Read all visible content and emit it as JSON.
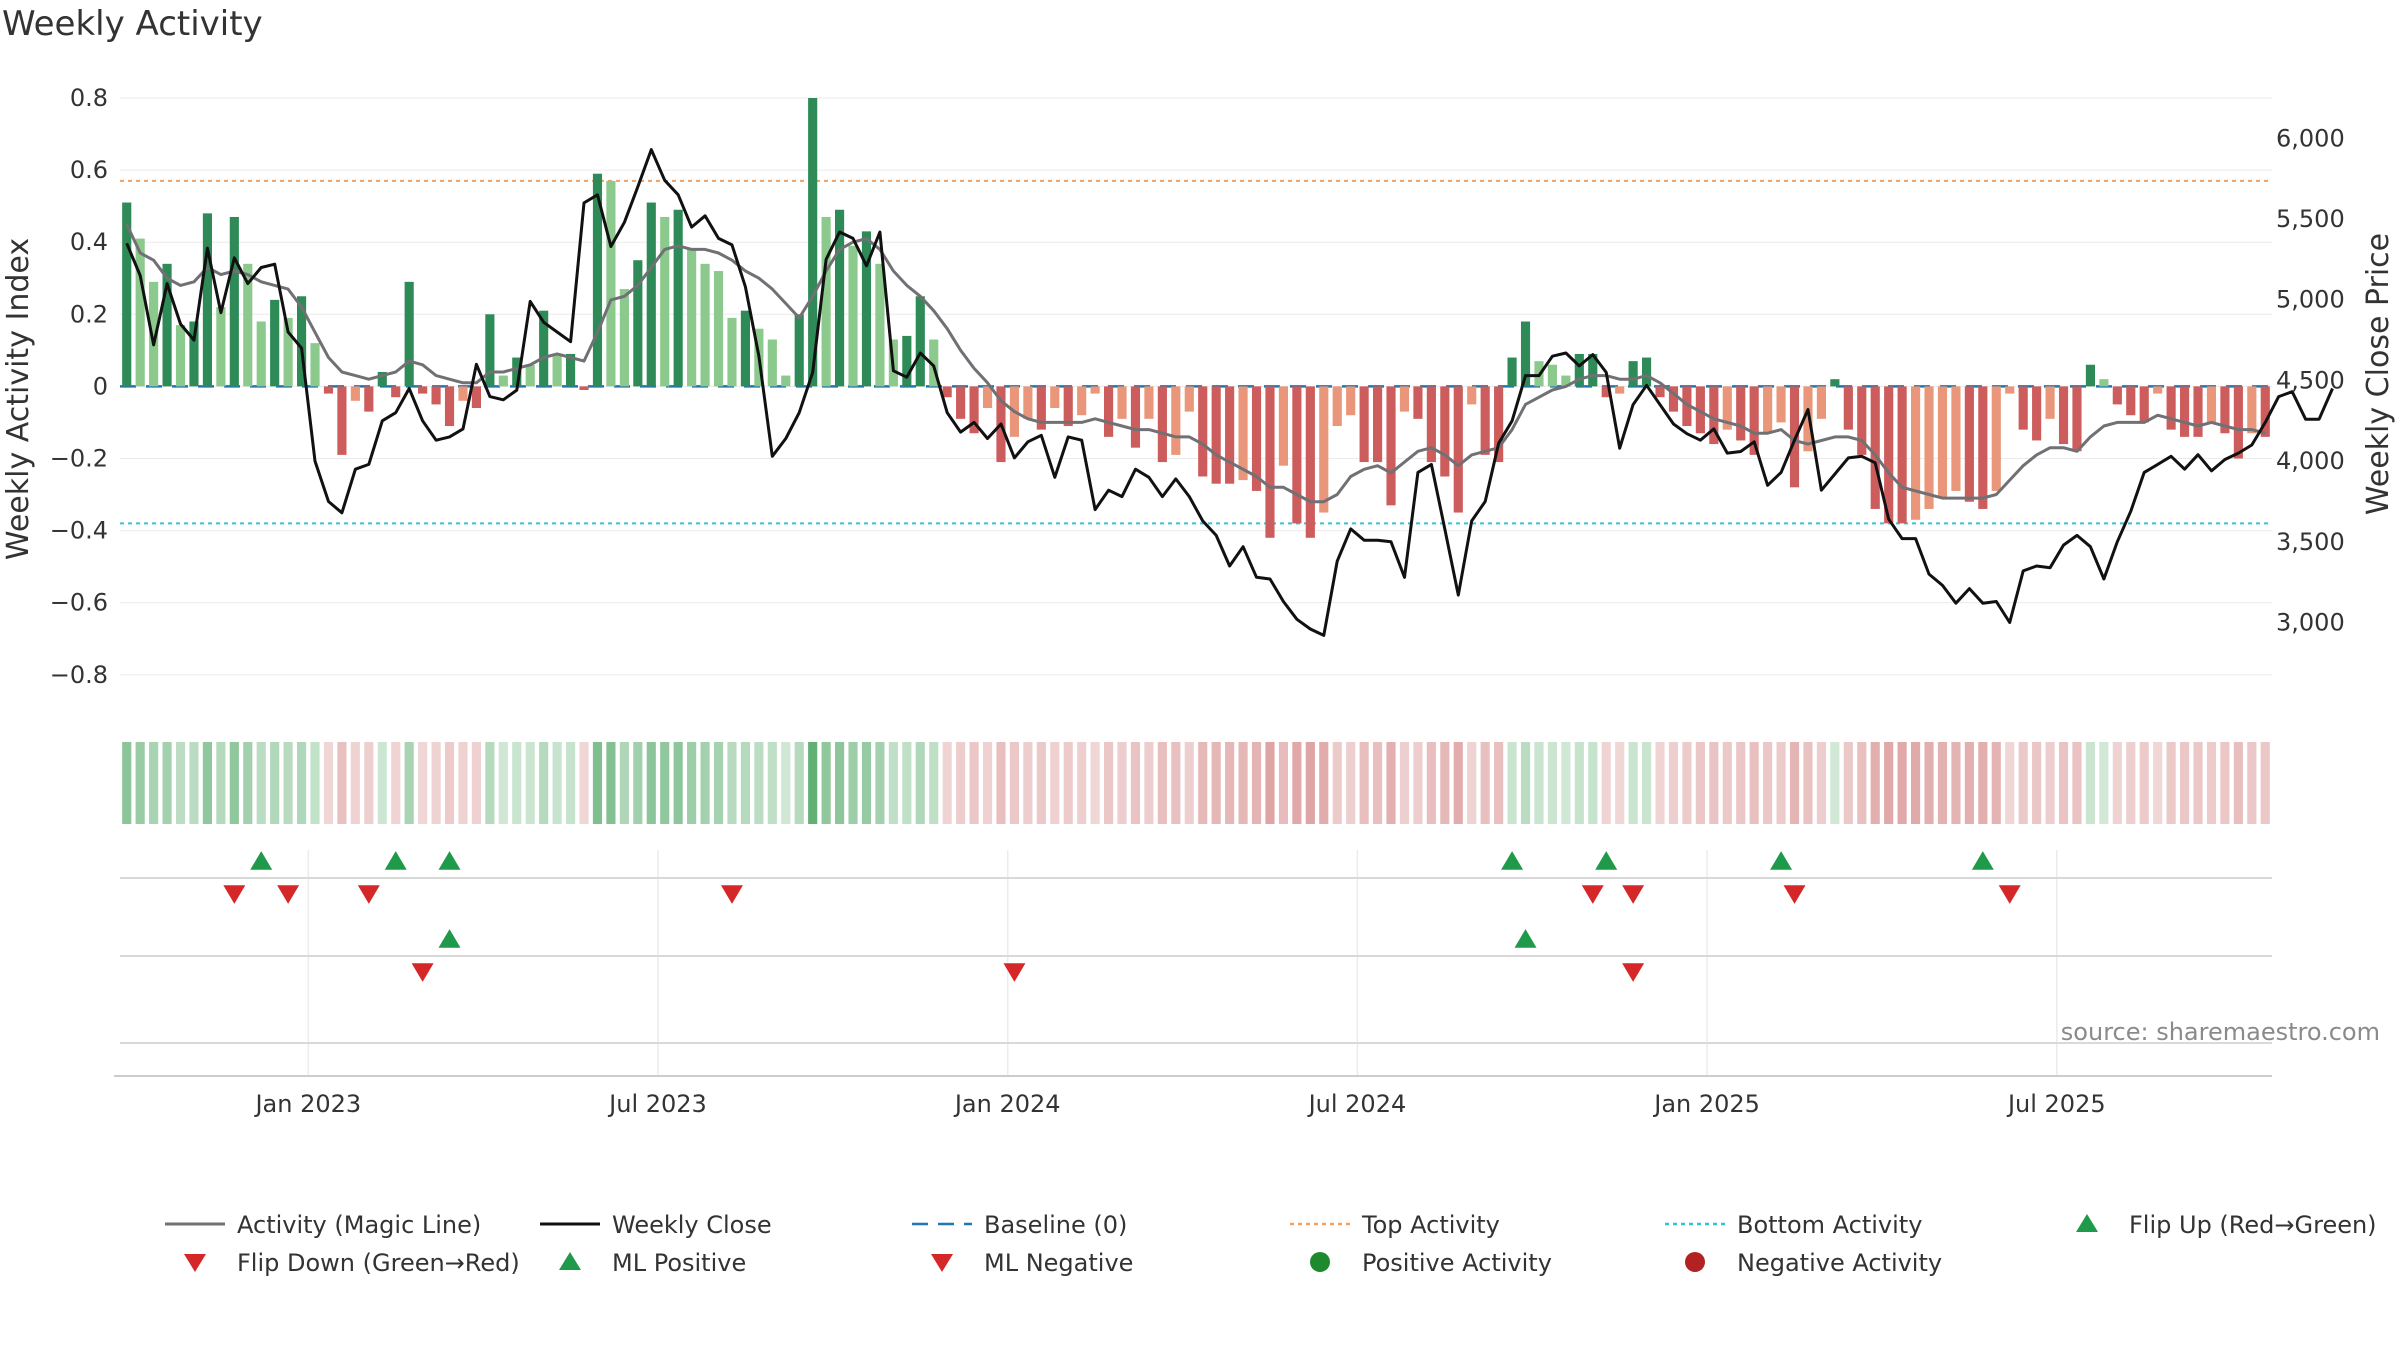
{
  "chart_data": {
    "type": "bar",
    "title": "Weekly Activity",
    "ylabel": "Weekly Activity Index",
    "y2label": "Weekly Close Price",
    "ylim": [
      -0.87,
      0.8
    ],
    "y2lim": [
      2520,
      6250
    ],
    "yticks": [
      0.8,
      0.6,
      0.4,
      0.2,
      0,
      -0.2,
      -0.4,
      -0.6,
      -0.8
    ],
    "ytick_labels": [
      "0.8",
      "0.6",
      "0.4",
      "0.2",
      "0",
      "−0.2",
      "−0.4",
      "−0.6",
      "−0.8"
    ],
    "y2ticks": [
      6000,
      5500,
      5000,
      4500,
      4000,
      3500,
      3000
    ],
    "y2tick_labels": [
      "6,000",
      "5,500",
      "5,000",
      "4,500",
      "4,000",
      "3,500",
      "3,000"
    ],
    "x_start": "2022-09-26",
    "x_end": "2025-09-01",
    "xticks": [
      {
        "label": "Jan 2023",
        "week": 14
      },
      {
        "label": "Jul 2023",
        "week": 40
      },
      {
        "label": "Jan 2024",
        "week": 66
      },
      {
        "label": "Jul 2024",
        "week": 92
      },
      {
        "label": "Jan 2025",
        "week": 118
      },
      {
        "label": "Jul 2025",
        "week": 144
      }
    ],
    "top_activity": 0.57,
    "bottom_activity": -0.38,
    "baseline": 0,
    "activity": [
      0.51,
      0.41,
      0.29,
      0.34,
      0.17,
      0.18,
      0.48,
      0.22,
      0.47,
      0.34,
      0.18,
      0.24,
      0.19,
      0.25,
      0.12,
      -0.02,
      -0.19,
      -0.04,
      -0.07,
      0.04,
      -0.03,
      0.29,
      -0.02,
      -0.05,
      -0.11,
      -0.04,
      -0.06,
      0.2,
      0.03,
      0.08,
      0.06,
      0.21,
      0.09,
      0.09,
      -0.01,
      0.59,
      0.57,
      0.27,
      0.35,
      0.51,
      0.47,
      0.49,
      0.38,
      0.34,
      0.32,
      0.19,
      0.21,
      0.16,
      0.13,
      0.03,
      0.2,
      0.8,
      0.47,
      0.49,
      0.39,
      0.43,
      0.34,
      0.13,
      0.14,
      0.25,
      0.13,
      -0.03,
      -0.09,
      -0.13,
      -0.06,
      -0.21,
      -0.14,
      -0.09,
      -0.12,
      -0.06,
      -0.11,
      -0.08,
      -0.02,
      -0.14,
      -0.09,
      -0.17,
      -0.09,
      -0.21,
      -0.19,
      -0.07,
      -0.25,
      -0.27,
      -0.27,
      -0.26,
      -0.29,
      -0.42,
      -0.22,
      -0.38,
      -0.42,
      -0.35,
      -0.11,
      -0.08,
      -0.21,
      -0.21,
      -0.33,
      -0.07,
      -0.09,
      -0.21,
      -0.25,
      -0.35,
      -0.05,
      -0.19,
      -0.21,
      0.08,
      0.18,
      0.07,
      0.06,
      0.03,
      0.09,
      0.09,
      -0.03,
      -0.02,
      0.07,
      0.08,
      -0.03,
      -0.07,
      -0.11,
      -0.13,
      -0.16,
      -0.12,
      -0.15,
      -0.19,
      -0.13,
      -0.1,
      -0.28,
      -0.18,
      -0.09,
      0.02,
      -0.12,
      -0.19,
      -0.34,
      -0.38,
      -0.38,
      -0.37,
      -0.34,
      -0.31,
      -0.29,
      -0.32,
      -0.34,
      -0.29,
      -0.02,
      -0.12,
      -0.15,
      -0.09,
      -0.16,
      -0.18,
      0.06,
      0.02,
      -0.05,
      -0.08,
      -0.1,
      -0.02,
      -0.12,
      -0.14,
      -0.14,
      -0.1,
      -0.13,
      -0.2,
      -0.13,
      -0.14
    ],
    "magic_line": [
      0.45,
      0.37,
      0.35,
      0.3,
      0.28,
      0.29,
      0.33,
      0.31,
      0.32,
      0.31,
      0.29,
      0.28,
      0.27,
      0.22,
      0.15,
      0.08,
      0.04,
      0.03,
      0.02,
      0.03,
      0.04,
      0.07,
      0.06,
      0.03,
      0.02,
      0.01,
      0.01,
      0.04,
      0.04,
      0.05,
      0.06,
      0.08,
      0.09,
      0.08,
      0.07,
      0.15,
      0.24,
      0.25,
      0.28,
      0.33,
      0.38,
      0.39,
      0.38,
      0.38,
      0.37,
      0.35,
      0.32,
      0.3,
      0.27,
      0.23,
      0.19,
      0.25,
      0.32,
      0.38,
      0.4,
      0.41,
      0.38,
      0.32,
      0.28,
      0.25,
      0.21,
      0.16,
      0.1,
      0.05,
      0.01,
      -0.04,
      -0.07,
      -0.09,
      -0.1,
      -0.1,
      -0.1,
      -0.1,
      -0.09,
      -0.1,
      -0.11,
      -0.12,
      -0.12,
      -0.13,
      -0.14,
      -0.14,
      -0.16,
      -0.19,
      -0.21,
      -0.23,
      -0.25,
      -0.28,
      -0.28,
      -0.3,
      -0.32,
      -0.32,
      -0.3,
      -0.25,
      -0.23,
      -0.22,
      -0.24,
      -0.21,
      -0.18,
      -0.17,
      -0.19,
      -0.22,
      -0.19,
      -0.18,
      -0.17,
      -0.12,
      -0.05,
      -0.03,
      -0.01,
      0.0,
      0.02,
      0.03,
      0.03,
      0.02,
      0.02,
      0.03,
      0.01,
      -0.02,
      -0.05,
      -0.07,
      -0.09,
      -0.1,
      -0.11,
      -0.13,
      -0.13,
      -0.12,
      -0.15,
      -0.16,
      -0.15,
      -0.14,
      -0.14,
      -0.15,
      -0.19,
      -0.24,
      -0.28,
      -0.29,
      -0.3,
      -0.31,
      -0.31,
      -0.31,
      -0.31,
      -0.3,
      -0.26,
      -0.22,
      -0.19,
      -0.17,
      -0.17,
      -0.18,
      -0.14,
      -0.11,
      -0.1,
      -0.1,
      -0.1,
      -0.08,
      -0.09,
      -0.1,
      -0.11,
      -0.1,
      -0.11,
      -0.12,
      -0.12,
      -0.13
    ],
    "weekly_close": [
      5350,
      5150,
      4720,
      5100,
      4850,
      4750,
      5320,
      4920,
      5260,
      5100,
      5200,
      5220,
      4800,
      4700,
      4000,
      3750,
      3680,
      3950,
      3980,
      4250,
      4300,
      4450,
      4250,
      4130,
      4150,
      4200,
      4600,
      4400,
      4380,
      4440,
      4990,
      4860,
      4800,
      4740,
      5600,
      5650,
      5330,
      5480,
      5700,
      5930,
      5740,
      5650,
      5450,
      5520,
      5380,
      5340,
      5080,
      4650,
      4030,
      4140,
      4300,
      4550,
      5250,
      5420,
      5380,
      5210,
      5420,
      4560,
      4520,
      4670,
      4590,
      4300,
      4180,
      4240,
      4140,
      4230,
      4020,
      4120,
      4160,
      3900,
      4150,
      4130,
      3700,
      3820,
      3780,
      3950,
      3900,
      3780,
      3890,
      3780,
      3630,
      3540,
      3350,
      3470,
      3280,
      3270,
      3130,
      3020,
      2960,
      2920,
      3380,
      3580,
      3510,
      3510,
      3500,
      3280,
      3930,
      3980,
      3580,
      3170,
      3630,
      3750,
      4110,
      4250,
      4530,
      4530,
      4650,
      4670,
      4590,
      4660,
      4550,
      4080,
      4350,
      4470,
      4350,
      4230,
      4170,
      4130,
      4200,
      4050,
      4060,
      4120,
      3850,
      3930,
      4130,
      4320,
      3820,
      3920,
      4020,
      4030,
      3990,
      3640,
      3520,
      3520,
      3300,
      3230,
      3120,
      3210,
      3120,
      3130,
      3000,
      3320,
      3350,
      3340,
      3480,
      3540,
      3470,
      3270,
      3500,
      3690,
      3930,
      3980,
      4030,
      3950,
      4040,
      3940,
      4010,
      4050,
      4100,
      4240,
      4400,
      4430,
      4260,
      4260,
      4450
    ],
    "flip_up_weeks": [
      10,
      20,
      24,
      103,
      110,
      123,
      138
    ],
    "flip_down_weeks": [
      8,
      12,
      18,
      45,
      109,
      112,
      124,
      140
    ],
    "ml_positive_weeks": [
      24,
      104
    ],
    "ml_negative_weeks": [
      22,
      66,
      112
    ],
    "source_text": "source: sharemaestro.com",
    "legend": [
      {
        "label": "Activity (Magic Line)",
        "type": "line",
        "color": "#707075"
      },
      {
        "label": "Weekly Close",
        "type": "line",
        "color": "#111111"
      },
      {
        "label": "Baseline (0)",
        "type": "dashed",
        "color": "#1f77b4"
      },
      {
        "label": "Top Activity",
        "type": "dotted",
        "color": "#f0a060"
      },
      {
        "label": "Bottom Activity",
        "type": "dotted",
        "color": "#30c4d4"
      },
      {
        "label": "Flip Up (Red→Green)",
        "type": "up",
        "color": "#1f9a4a"
      },
      {
        "label": "Flip Down (Green→Red)",
        "type": "down",
        "color": "#d62728"
      },
      {
        "label": "ML Positive",
        "type": "up",
        "color": "#1f9a4a"
      },
      {
        "label": "ML Negative",
        "type": "down",
        "color": "#d62728"
      },
      {
        "label": "Positive Activity",
        "type": "dot",
        "color": "#1e8a2e"
      },
      {
        "label": "Negative Activity",
        "type": "dot",
        "color": "#b22222"
      }
    ],
    "colors": {
      "pos_strong": "#2e8b57",
      "pos_light": "#8cc98c",
      "neg_strong": "#cd5c5c",
      "neg_light": "#e9967a",
      "magic_line": "#707075",
      "close": "#111111",
      "baseline": "#1f77b4",
      "top": "#f0a060",
      "bottom": "#30c4d4",
      "flip_up": "#1f9a4a",
      "flip_down": "#d62728"
    }
  }
}
